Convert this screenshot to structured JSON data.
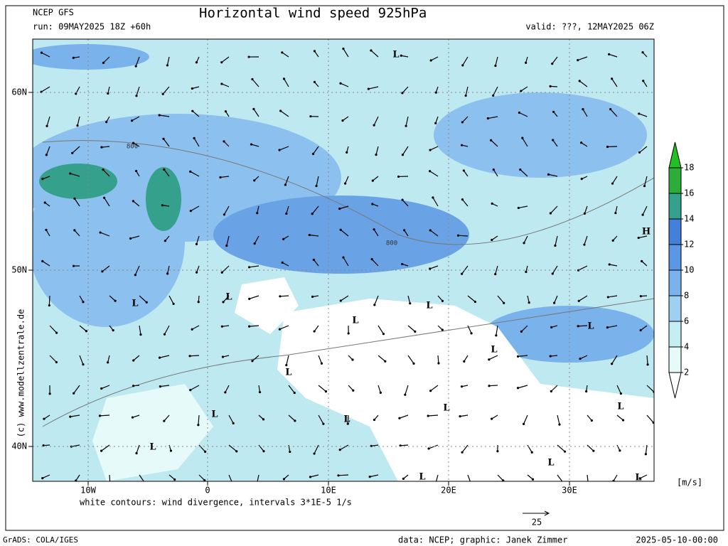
{
  "header": {
    "model": "NCEP GFS",
    "title": "Horizontal wind speed 925hPa",
    "run": "run: 09MAY2025 18Z +60h",
    "valid": "valid: ???, 12MAY2025 06Z"
  },
  "map": {
    "lat_labels": [
      "60N",
      "50N",
      "40N"
    ],
    "lon_labels": [
      "10W",
      "0",
      "10E",
      "20E",
      "30E"
    ],
    "pressure_labels": [
      "L",
      "L",
      "L",
      "L",
      "L",
      "L",
      "L",
      "L",
      "L",
      "L",
      "L",
      "L",
      "L",
      "L",
      "L",
      "L",
      "H"
    ],
    "contour_labels": [
      "800",
      "800"
    ],
    "credit": "(c) www.modellzentrale.de"
  },
  "colorbar": {
    "ticks": [
      2,
      4,
      6,
      8,
      10,
      12,
      14,
      16,
      18
    ],
    "colors": [
      "#ffffff",
      "#e6fafa",
      "#c4eef2",
      "#9fd0f2",
      "#7ab2ec",
      "#5b97e4",
      "#4480da",
      "#35a08c",
      "#2eac3a",
      "#22c022"
    ],
    "unit": "[m/s]"
  },
  "footer": {
    "note": "white contours: wind divergence, intervals 3*1E-5 1/s",
    "scale_label": "25",
    "grads": "GrADS: COLA/IGES",
    "data": "data: NCEP; graphic: Janek Zimmer",
    "date": "2025-05-10-00:00"
  }
}
